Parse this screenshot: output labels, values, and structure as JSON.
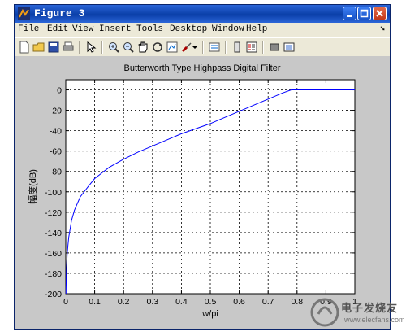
{
  "window": {
    "title": "Figure 3",
    "menu": [
      "File",
      "Edit",
      "View",
      "Insert",
      "Tools",
      "Desktop",
      "Window",
      "Help"
    ],
    "toolbar_icons": [
      "new-file-icon",
      "open-folder-icon",
      "save-icon",
      "print-icon",
      "pointer-icon",
      "zoom-in-icon",
      "zoom-out-icon",
      "pan-hand-icon",
      "rotate-3d-icon",
      "data-cursor-icon",
      "brush-icon",
      "brush-dropdown-icon",
      "link-plot-icon",
      "colorbar-icon",
      "legend-icon",
      "hide-plot-tools-icon",
      "show-plot-tools-icon"
    ]
  },
  "chart_data": {
    "type": "line",
    "title": "Butterworth Type Highpass Digital Filter",
    "xlabel": "w/pi",
    "ylabel": "幅度(dB)",
    "xlim": [
      0,
      1
    ],
    "ylim": [
      -200,
      10
    ],
    "grid": true,
    "x_ticks": [
      0,
      0.1,
      0.2,
      0.3,
      0.4,
      0.5,
      0.6,
      0.7,
      0.8,
      0.9,
      1
    ],
    "y_ticks": [
      0,
      -20,
      -40,
      -60,
      -80,
      -100,
      -120,
      -140,
      -160,
      -180,
      -200
    ],
    "series": [
      {
        "color": "#0000ff",
        "x": [
          0.0008,
          0.002,
          0.005,
          0.01,
          0.02,
          0.03,
          0.05,
          0.08,
          0.1,
          0.15,
          0.2,
          0.25,
          0.3,
          0.35,
          0.4,
          0.45,
          0.5,
          0.55,
          0.6,
          0.65,
          0.7,
          0.75,
          0.78,
          0.8,
          0.85,
          0.9,
          0.95,
          1.0
        ],
        "y": [
          -200,
          -180,
          -160,
          -145,
          -128,
          -118,
          -105,
          -94,
          -87,
          -76,
          -68,
          -61,
          -55,
          -49,
          -43,
          -38,
          -33,
          -27,
          -21,
          -15,
          -9,
          -3,
          0,
          0,
          0,
          0,
          0,
          0
        ]
      }
    ]
  },
  "watermark": {
    "text": "电子发烧友",
    "url": "www.elecfans.com"
  }
}
